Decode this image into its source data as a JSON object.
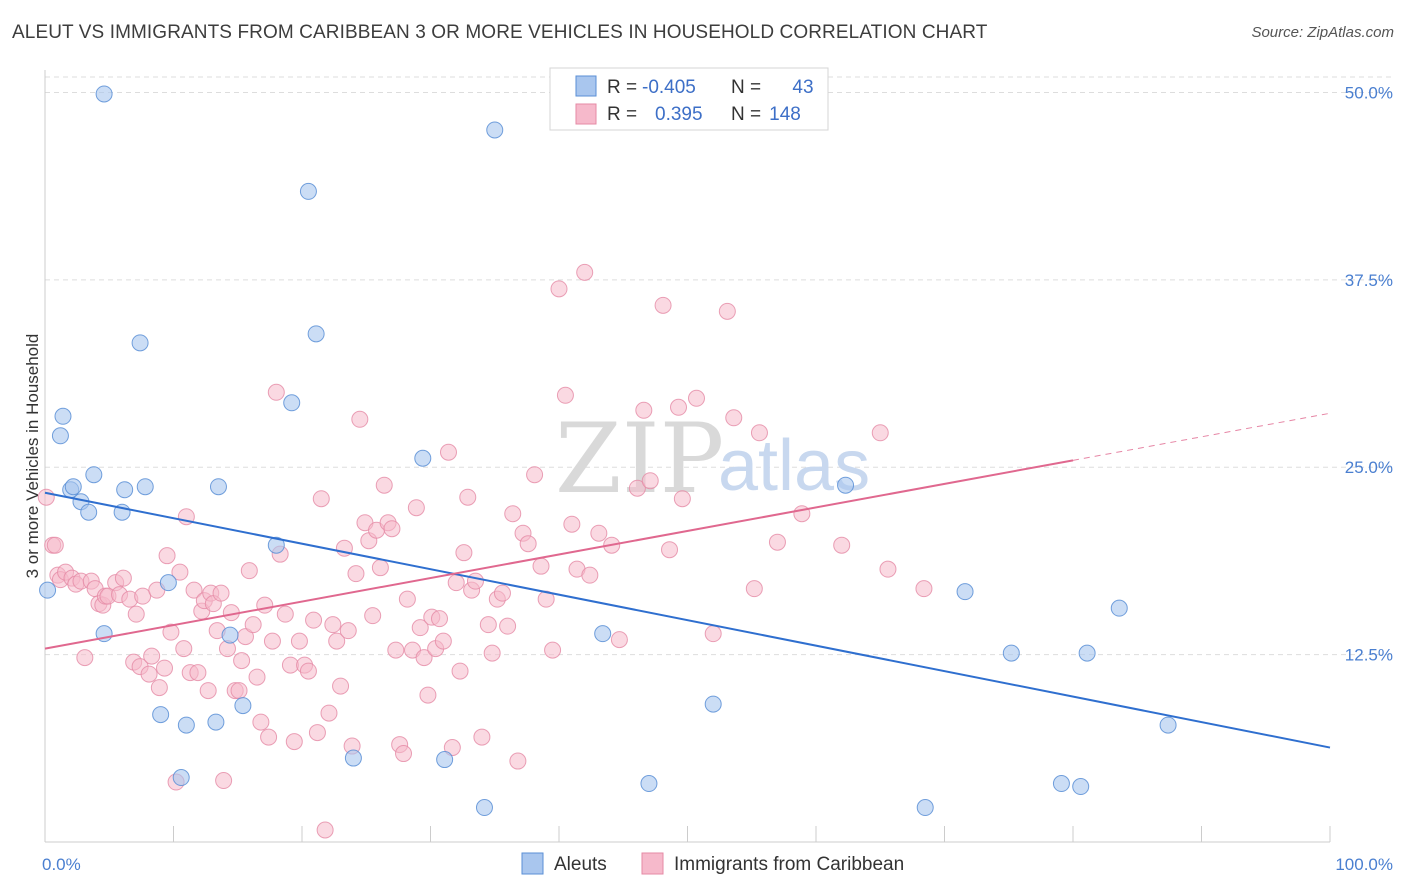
{
  "title": "ALEUT VS IMMIGRANTS FROM CARIBBEAN 3 OR MORE VEHICLES IN HOUSEHOLD CORRELATION CHART",
  "source": "Source: ZipAtlas.com",
  "watermark": {
    "zip": "ZIP",
    "atlas": "atlas"
  },
  "legend_box": {
    "rows": [
      {
        "r_label": "R =",
        "r_value": "-0.405",
        "n_label": "N =",
        "n_value": "43"
      },
      {
        "r_label": "R =",
        "r_value": "0.395",
        "n_label": "N =",
        "n_value": "148"
      }
    ]
  },
  "colors": {
    "aleut_fill": "#a9c6ee",
    "aleut_stroke": "#5a8fd6",
    "aleut_line": "#2f6fcf",
    "carib_fill": "#f6b9cb",
    "carib_stroke": "#e58aa5",
    "carib_line": "#e0688f",
    "grid": "#dddddd",
    "tick_text": "#4a7fd0"
  },
  "chart_data": {
    "type": "scatter",
    "title": "ALEUT VS IMMIGRANTS FROM CARIBBEAN 3 OR MORE VEHICLES IN HOUSEHOLD CORRELATION CHART",
    "xlabel": "",
    "ylabel": "3 or more Vehicles in Household",
    "xlim": [
      0,
      100
    ],
    "ylim": [
      0,
      51.5
    ],
    "x_tick_labels": [
      "0.0%",
      "100.0%"
    ],
    "y_ticks": [
      12.5,
      25.0,
      37.5,
      50.0
    ],
    "y_tick_labels": [
      "12.5%",
      "25.0%",
      "37.5%",
      "50.0%"
    ],
    "grid": true,
    "legend_position": "bottom",
    "series": [
      {
        "name": "Aleuts",
        "r": -0.405,
        "n": 43,
        "trend": {
          "x": [
            0,
            100
          ],
          "y": [
            23.3,
            6.3
          ],
          "dashed_from": null
        },
        "points": [
          [
            0.2,
            16.8
          ],
          [
            1.2,
            27.1
          ],
          [
            1.4,
            28.4
          ],
          [
            2.0,
            23.5
          ],
          [
            2.2,
            23.7
          ],
          [
            2.8,
            22.7
          ],
          [
            3.4,
            22.0
          ],
          [
            3.8,
            24.5
          ],
          [
            4.6,
            49.9
          ],
          [
            4.6,
            13.9
          ],
          [
            6.2,
            23.5
          ],
          [
            6.0,
            22.0
          ],
          [
            7.4,
            33.3
          ],
          [
            7.8,
            23.7
          ],
          [
            9.0,
            8.5
          ],
          [
            9.6,
            17.3
          ],
          [
            10.6,
            4.3
          ],
          [
            11.0,
            7.8
          ],
          [
            13.3,
            8.0
          ],
          [
            13.5,
            23.7
          ],
          [
            14.4,
            13.8
          ],
          [
            15.4,
            9.1
          ],
          [
            18.0,
            19.8
          ],
          [
            19.2,
            29.3
          ],
          [
            20.5,
            43.4
          ],
          [
            21.1,
            33.9
          ],
          [
            24.0,
            5.6
          ],
          [
            29.4,
            25.6
          ],
          [
            31.1,
            5.5
          ],
          [
            34.2,
            2.3
          ],
          [
            35.0,
            47.5
          ],
          [
            43.4,
            13.9
          ],
          [
            47.0,
            3.9
          ],
          [
            52.0,
            9.2
          ],
          [
            62.3,
            23.8
          ],
          [
            68.5,
            2.3
          ],
          [
            71.6,
            16.7
          ],
          [
            75.2,
            12.6
          ],
          [
            79.1,
            3.9
          ],
          [
            80.6,
            3.7
          ],
          [
            81.1,
            12.6
          ],
          [
            83.6,
            15.6
          ],
          [
            87.4,
            7.8
          ]
        ]
      },
      {
        "name": "Immigrants from Caribbean",
        "r": 0.395,
        "n": 148,
        "trend": {
          "x": [
            0,
            100
          ],
          "y": [
            12.9,
            28.6
          ],
          "dashed_from": 80
        },
        "points": [
          [
            0.1,
            23.0
          ],
          [
            0.6,
            19.8
          ],
          [
            0.8,
            19.8
          ],
          [
            1.0,
            17.8
          ],
          [
            1.2,
            17.5
          ],
          [
            1.6,
            18.0
          ],
          [
            2.1,
            17.6
          ],
          [
            2.4,
            17.2
          ],
          [
            2.8,
            17.4
          ],
          [
            3.1,
            12.3
          ],
          [
            3.6,
            17.4
          ],
          [
            3.9,
            16.9
          ],
          [
            4.2,
            15.9
          ],
          [
            4.5,
            15.8
          ],
          [
            4.7,
            16.4
          ],
          [
            4.9,
            16.4
          ],
          [
            5.5,
            17.3
          ],
          [
            5.8,
            16.5
          ],
          [
            6.1,
            17.6
          ],
          [
            6.6,
            16.2
          ],
          [
            6.9,
            12.0
          ],
          [
            7.1,
            15.2
          ],
          [
            7.4,
            11.7
          ],
          [
            7.6,
            16.4
          ],
          [
            8.1,
            11.2
          ],
          [
            8.3,
            12.4
          ],
          [
            8.7,
            16.8
          ],
          [
            8.9,
            10.3
          ],
          [
            9.3,
            11.6
          ],
          [
            9.5,
            19.1
          ],
          [
            9.8,
            14.0
          ],
          [
            10.2,
            4.0
          ],
          [
            10.5,
            18.0
          ],
          [
            10.8,
            12.9
          ],
          [
            11.0,
            21.7
          ],
          [
            11.3,
            11.3
          ],
          [
            11.6,
            16.8
          ],
          [
            11.9,
            11.3
          ],
          [
            12.2,
            15.4
          ],
          [
            12.4,
            16.1
          ],
          [
            12.7,
            10.1
          ],
          [
            12.9,
            16.6
          ],
          [
            13.1,
            15.9
          ],
          [
            13.4,
            14.1
          ],
          [
            13.7,
            16.6
          ],
          [
            13.9,
            4.1
          ],
          [
            14.2,
            12.9
          ],
          [
            14.5,
            15.3
          ],
          [
            14.8,
            10.1
          ],
          [
            15.1,
            10.1
          ],
          [
            15.3,
            12.1
          ],
          [
            15.6,
            13.7
          ],
          [
            15.9,
            18.1
          ],
          [
            16.2,
            14.5
          ],
          [
            16.5,
            11.0
          ],
          [
            16.8,
            8.0
          ],
          [
            17.1,
            15.8
          ],
          [
            17.4,
            7.0
          ],
          [
            17.7,
            13.4
          ],
          [
            18.0,
            30.0
          ],
          [
            18.3,
            19.2
          ],
          [
            18.7,
            15.2
          ],
          [
            19.1,
            11.8
          ],
          [
            19.4,
            6.7
          ],
          [
            19.8,
            13.4
          ],
          [
            20.2,
            11.8
          ],
          [
            20.5,
            11.4
          ],
          [
            20.9,
            14.8
          ],
          [
            21.2,
            7.3
          ],
          [
            21.5,
            22.9
          ],
          [
            21.8,
            0.8
          ],
          [
            22.1,
            8.6
          ],
          [
            22.4,
            14.5
          ],
          [
            22.7,
            13.4
          ],
          [
            23.0,
            10.4
          ],
          [
            23.3,
            19.6
          ],
          [
            23.6,
            14.1
          ],
          [
            23.9,
            6.4
          ],
          [
            24.2,
            17.9
          ],
          [
            24.5,
            28.2
          ],
          [
            24.9,
            21.3
          ],
          [
            25.2,
            20.1
          ],
          [
            25.5,
            15.1
          ],
          [
            25.8,
            20.8
          ],
          [
            26.1,
            18.3
          ],
          [
            26.4,
            23.8
          ],
          [
            26.7,
            21.3
          ],
          [
            27.0,
            20.9
          ],
          [
            27.3,
            12.8
          ],
          [
            27.6,
            6.5
          ],
          [
            27.9,
            5.9
          ],
          [
            28.2,
            16.2
          ],
          [
            28.6,
            12.8
          ],
          [
            28.9,
            22.3
          ],
          [
            29.2,
            14.3
          ],
          [
            29.5,
            12.3
          ],
          [
            29.8,
            9.8
          ],
          [
            30.1,
            15.0
          ],
          [
            30.4,
            12.9
          ],
          [
            30.7,
            14.9
          ],
          [
            31.0,
            13.4
          ],
          [
            31.4,
            26.0
          ],
          [
            31.7,
            6.3
          ],
          [
            32.0,
            17.3
          ],
          [
            32.3,
            11.4
          ],
          [
            32.6,
            19.3
          ],
          [
            32.9,
            23.0
          ],
          [
            33.2,
            16.8
          ],
          [
            33.5,
            17.4
          ],
          [
            34.0,
            7.0
          ],
          [
            34.5,
            14.5
          ],
          [
            34.8,
            12.6
          ],
          [
            35.2,
            16.2
          ],
          [
            35.6,
            16.6
          ],
          [
            36.0,
            14.4
          ],
          [
            36.4,
            21.9
          ],
          [
            36.8,
            5.4
          ],
          [
            37.2,
            20.6
          ],
          [
            37.6,
            19.9
          ],
          [
            38.1,
            24.5
          ],
          [
            38.6,
            18.4
          ],
          [
            39.0,
            16.2
          ],
          [
            39.5,
            12.8
          ],
          [
            40.0,
            36.9
          ],
          [
            40.5,
            29.8
          ],
          [
            41.0,
            21.2
          ],
          [
            41.4,
            18.2
          ],
          [
            42.0,
            38.0
          ],
          [
            42.4,
            17.8
          ],
          [
            43.1,
            20.6
          ],
          [
            44.1,
            19.8
          ],
          [
            44.7,
            13.5
          ],
          [
            46.1,
            23.6
          ],
          [
            46.6,
            28.8
          ],
          [
            47.1,
            24.1
          ],
          [
            48.1,
            35.8
          ],
          [
            48.6,
            19.5
          ],
          [
            49.3,
            29.0
          ],
          [
            49.6,
            22.9
          ],
          [
            50.7,
            29.6
          ],
          [
            52.0,
            13.9
          ],
          [
            53.1,
            35.4
          ],
          [
            53.6,
            28.3
          ],
          [
            55.2,
            16.9
          ],
          [
            55.6,
            27.3
          ],
          [
            57.0,
            20.0
          ],
          [
            58.9,
            21.9
          ],
          [
            62.0,
            19.8
          ],
          [
            65.0,
            27.3
          ],
          [
            65.6,
            18.2
          ],
          [
            68.4,
            16.9
          ]
        ]
      }
    ]
  },
  "bottom_legend": [
    {
      "label": "Aleuts"
    },
    {
      "label": "Immigrants from Caribbean"
    }
  ]
}
